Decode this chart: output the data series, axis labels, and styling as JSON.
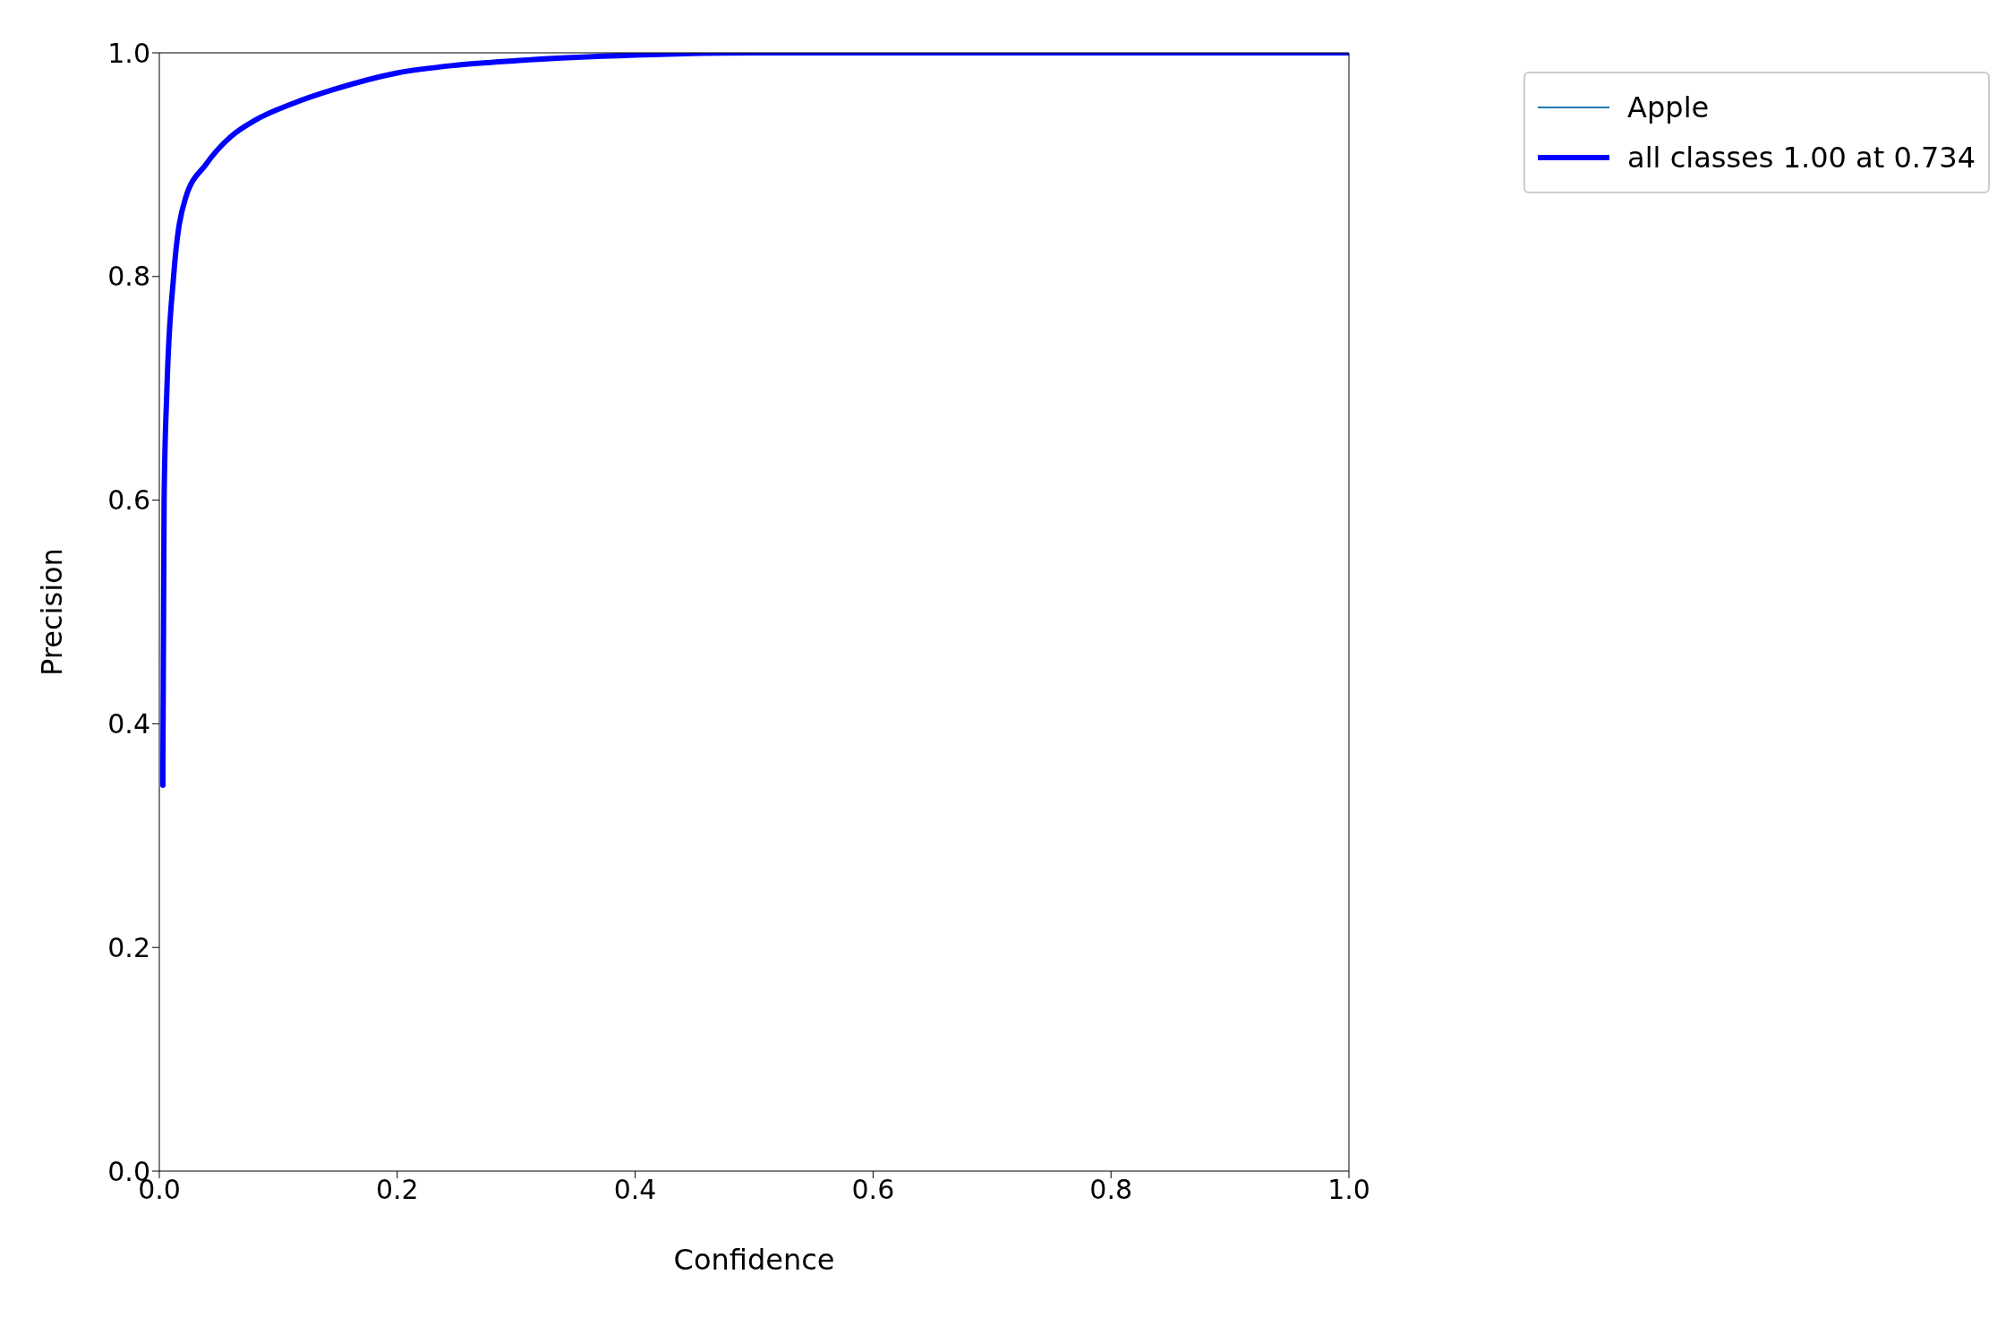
{
  "chart_data": {
    "type": "line",
    "xlabel": "Confidence",
    "ylabel": "Precision",
    "x": [
      0.003,
      0.003,
      0.004,
      0.0064,
      0.012,
      0.022,
      0.039,
      0.06,
      0.081,
      0.113,
      0.146,
      0.2,
      0.25,
      0.3,
      0.4,
      0.5,
      0.6,
      0.8,
      1.0
    ],
    "series": [
      {
        "name": "Apple",
        "color": "#1f77b4",
        "values": [
          null,
          null,
          null,
          null,
          null,
          null,
          null,
          null,
          null,
          null,
          null,
          null,
          null,
          null,
          null,
          null,
          null,
          null,
          null
        ]
      },
      {
        "name": "all classes 1.00 at 0.734",
        "color": "#0000ff",
        "values": [
          0.345,
          0.36,
          0.6,
          0.7,
          0.8,
          0.87,
          0.9,
          0.925,
          0.94,
          0.955,
          0.967,
          0.982,
          0.989,
          0.993,
          0.998,
          1.0,
          1.0,
          1.0,
          1.0
        ]
      }
    ],
    "xlim": [
      0,
      1
    ],
    "ylim": [
      0,
      1
    ],
    "xticks": [
      {
        "value": 0,
        "label": "0.0"
      },
      {
        "value": 0.2,
        "label": "0.2"
      },
      {
        "value": 0.4,
        "label": "0.4"
      },
      {
        "value": 0.6,
        "label": "0.6"
      },
      {
        "value": 0.8,
        "label": "0.8"
      },
      {
        "value": 1,
        "label": "1.0"
      }
    ],
    "yticks": [
      {
        "value": 0,
        "label": "0.0"
      },
      {
        "value": 0.2,
        "label": "0.2"
      },
      {
        "value": 0.4,
        "label": "0.4"
      },
      {
        "value": 0.6,
        "label": "0.6"
      },
      {
        "value": 0.8,
        "label": "0.8"
      },
      {
        "value": 1,
        "label": "1.0"
      }
    ],
    "grid": false,
    "legend": "top right",
    "marker": "none",
    "line_style": "solid"
  }
}
